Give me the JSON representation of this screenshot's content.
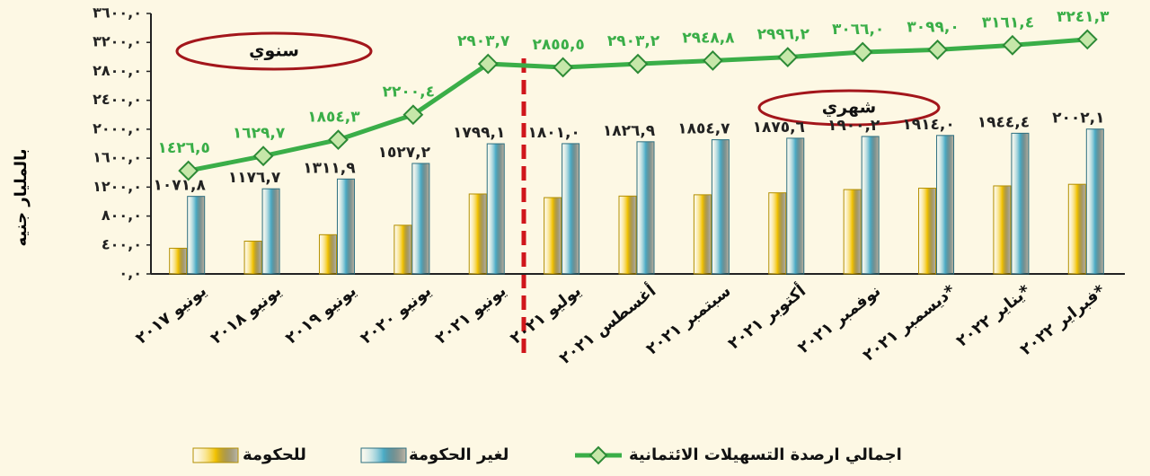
{
  "chart_data": {
    "type": "bar",
    "ylabel": "بالمليار جنيه",
    "categories": [
      "يونيو ٢٠١٧",
      "يونيو ٢٠١٨",
      "يونيو ٢٠١٩",
      "يونيو ٢٠٢٠",
      "يونيو ٢٠٢١",
      "يوليو ٢٠٢١",
      "أغسطس ٢٠٢١",
      "سبتمبر ٢٠٢١",
      "أكتوبر ٢٠٢١",
      "نوفمبر ٢٠٢١",
      "ديسمبر ٢٠٢١*",
      "يناير ٢٠٢٢*",
      "فبراير ٢٠٢٢*"
    ],
    "series": [
      {
        "name": "للحكومة",
        "color": "#f2c200",
        "values": [
          355,
          453,
          542,
          673,
          1105,
          1055,
          1076,
          1094,
          1121,
          1166,
          1185,
          1217,
          1239
        ]
      },
      {
        "name": "لغير الحكومة",
        "color": "#4bacc6",
        "values": [
          1071.8,
          1176.7,
          1311.9,
          1527.2,
          1799.1,
          1801.0,
          1826.9,
          1854.7,
          1875.6,
          1900.2,
          1914.0,
          1944.4,
          2002.1
        ],
        "value_labels": [
          "١٠٧١,٨",
          "١١٧٦,٧",
          "١٣١١,٩",
          "١٥٢٧,٢",
          "١٧٩٩,١",
          "١٨٠١,٠",
          "١٨٢٦,٩",
          "١٨٥٤,٧",
          "١٨٧٥,٦",
          "١٩٠٠,٢",
          "١٩١٤,٠",
          "١٩٤٤,٤",
          "٢٠٠٢,١"
        ]
      },
      {
        "name": "اجمالي ارصدة التسهيلات الائتمانية",
        "type": "line",
        "color": "#3aae48",
        "values": [
          1426.5,
          1629.7,
          1854.3,
          2200.4,
          2903.7,
          2855.5,
          2903.2,
          2948.8,
          2996.2,
          3066.0,
          3099.0,
          3161.4,
          3241.3
        ],
        "value_labels": [
          "١٤٢٦,٥",
          "١٦٢٩,٧",
          "١٨٥٤,٣",
          "٢٢٠٠,٤",
          "٢٩٠٣,٧",
          "٢٨٥٥,٥",
          "٢٩٠٣,٢",
          "٢٩٤٨,٨",
          "٢٩٩٦,٢",
          "٣٠٦٦,٠",
          "٣٠٩٩,٠",
          "٣١٦١,٤",
          "٣٢٤١,٣"
        ]
      }
    ],
    "annotations": [
      "سنوي",
      "شهري"
    ],
    "ylim": [
      0,
      3600
    ],
    "yticks": [
      {
        "value": 0,
        "label": "٠,٠"
      },
      {
        "value": 400,
        "label": "٤٠٠,٠"
      },
      {
        "value": 800,
        "label": "٨٠٠,٠"
      },
      {
        "value": 1200,
        "label": "١٢٠٠,٠"
      },
      {
        "value": 1600,
        "label": "١٦٠٠,٠"
      },
      {
        "value": 2000,
        "label": "٢٠٠٠,٠"
      },
      {
        "value": 2400,
        "label": "٢٤٠٠,٠"
      },
      {
        "value": 2800,
        "label": "٢٨٠٠,٠"
      },
      {
        "value": 3200,
        "label": "٣٢٠٠,٠"
      },
      {
        "value": 3600,
        "label": "٣٦٠٠,٠"
      }
    ],
    "grid": false
  }
}
